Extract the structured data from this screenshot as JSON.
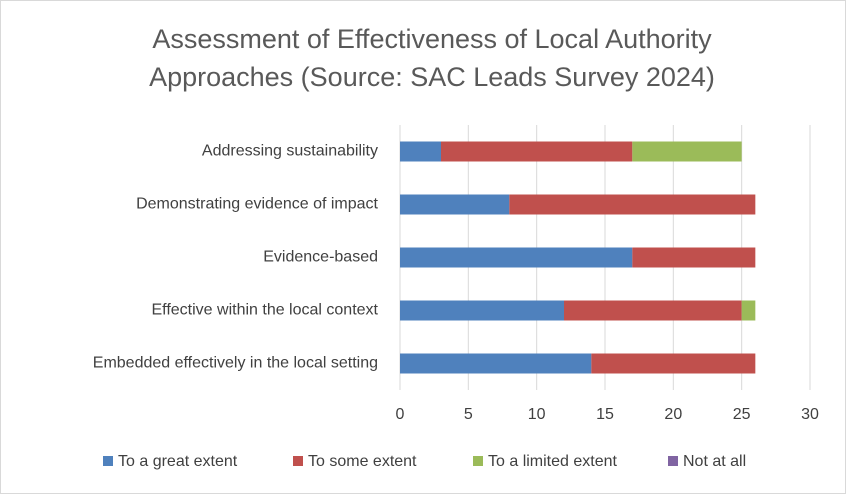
{
  "chart_data": {
    "type": "stacked-bar-horizontal",
    "title": [
      "Assessment of Effectiveness of Local Authority",
      "Approaches (Source: SAC Leads Survey 2024)"
    ],
    "categories": [
      "Addressing sustainability",
      "Demonstrating evidence of impact",
      "Evidence-based",
      "Effective within the local context",
      "Embedded effectively in the local setting"
    ],
    "series": [
      {
        "name": "To a great extent",
        "color": "#4f81bd",
        "values": [
          3,
          8,
          17,
          12,
          14
        ]
      },
      {
        "name": "To some extent",
        "color": "#c0504d",
        "values": [
          14,
          18,
          9,
          13,
          12
        ]
      },
      {
        "name": "To a limited extent",
        "color": "#9bbb59",
        "values": [
          8,
          0,
          0,
          1,
          0
        ]
      },
      {
        "name": "Not at all",
        "color": "#8064a2",
        "values": [
          0,
          0,
          0,
          0,
          0
        ]
      }
    ],
    "xlim": [
      0,
      30
    ],
    "xticks": [
      0,
      5,
      10,
      15,
      20,
      25,
      30
    ],
    "grid": true,
    "legend": "bottom"
  }
}
